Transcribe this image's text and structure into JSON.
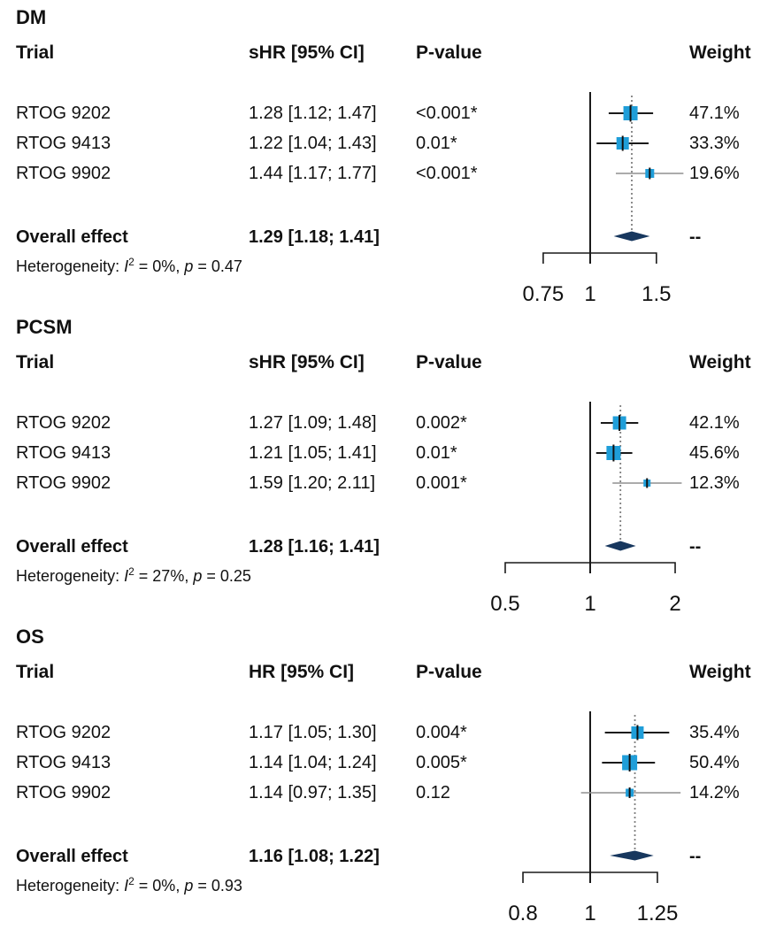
{
  "columns": {
    "trial": "Trial",
    "p_value": "P-value",
    "weight": "Weight"
  },
  "overall_label": "Overall effect",
  "overall_weight": "--",
  "het": {
    "label": "Heterogeneity: ",
    "i": "I",
    "sup": "2",
    "eq": " = ",
    "comma": ", ",
    "p": "p"
  },
  "colors": {
    "square": "#1F9ED9",
    "diamond": "#17375E",
    "line_dark": "#1a1a1a",
    "line_light": "#8f8f8f",
    "dotted": "#7f7f7f",
    "text": "#111111"
  },
  "panels": [
    {
      "title": "DM",
      "effect_header": "sHR [95% CI]",
      "rows": [
        {
          "trial": "RTOG 9202",
          "ci_text": "1.28 [1.12; 1.47]",
          "p": "<0.001*",
          "weight_text": "47.1%"
        },
        {
          "trial": "RTOG 9413",
          "ci_text": "1.22 [1.04; 1.43]",
          "p": "0.01*",
          "weight_text": "33.3%"
        },
        {
          "trial": "RTOG 9902",
          "ci_text": "1.44 [1.17; 1.77]",
          "p": "<0.001*",
          "weight_text": "19.6%"
        }
      ],
      "overall_ci_text": "1.29 [1.18; 1.41]",
      "het_i2": "0%",
      "het_p": "0.47"
    },
    {
      "title": "PCSM",
      "effect_header": "sHR [95% CI]",
      "rows": [
        {
          "trial": "RTOG 9202",
          "ci_text": "1.27 [1.09; 1.48]",
          "p": "0.002*",
          "weight_text": "42.1%"
        },
        {
          "trial": "RTOG 9413",
          "ci_text": "1.21 [1.05; 1.41]",
          "p": "0.01*",
          "weight_text": "45.6%"
        },
        {
          "trial": "RTOG 9902",
          "ci_text": "1.59 [1.20; 2.11]",
          "p": "0.001*",
          "weight_text": "12.3%"
        }
      ],
      "overall_ci_text": "1.28 [1.16; 1.41]",
      "het_i2": "27%",
      "het_p": "0.25"
    },
    {
      "title": "OS",
      "effect_header": "HR [95% CI]",
      "rows": [
        {
          "trial": "RTOG 9202",
          "ci_text": "1.17 [1.05; 1.30]",
          "p": "0.004*",
          "weight_text": "35.4%"
        },
        {
          "trial": "RTOG 9413",
          "ci_text": "1.14 [1.04; 1.24]",
          "p": "0.005*",
          "weight_text": "50.4%"
        },
        {
          "trial": "RTOG 9902",
          "ci_text": "1.14 [0.97; 1.35]",
          "p": "0.12",
          "weight_text": "14.2%"
        }
      ],
      "overall_ci_text": "1.16 [1.08; 1.22]",
      "het_i2": "0%",
      "het_p": "0.93"
    }
  ],
  "chart_data": [
    {
      "type": "forest",
      "outcome": "DM",
      "effect_measure": "sHR [95% CI]",
      "x_scale": "log",
      "reference_line": 1,
      "x_ticks": [
        0.75,
        1,
        1.5
      ],
      "x_tick_labels": [
        "0.75",
        "1",
        "1.5"
      ],
      "studies": [
        {
          "name": "RTOG 9202",
          "estimate": 1.28,
          "ci_low": 1.12,
          "ci_high": 1.47,
          "p_value": "<0.001*",
          "weight_pct": 47.1
        },
        {
          "name": "RTOG 9413",
          "estimate": 1.22,
          "ci_low": 1.04,
          "ci_high": 1.43,
          "p_value": "0.01*",
          "weight_pct": 33.3
        },
        {
          "name": "RTOG 9902",
          "estimate": 1.44,
          "ci_low": 1.17,
          "ci_high": 1.77,
          "p_value": "<0.001*",
          "weight_pct": 19.6
        }
      ],
      "overall": {
        "label": "Overall effect",
        "estimate": 1.29,
        "ci_low": 1.18,
        "ci_high": 1.41,
        "weight": "--"
      },
      "heterogeneity": {
        "i2": "0%",
        "p": "0.47"
      }
    },
    {
      "type": "forest",
      "outcome": "PCSM",
      "effect_measure": "sHR [95% CI]",
      "x_scale": "log",
      "reference_line": 1,
      "x_ticks": [
        0.5,
        1,
        2
      ],
      "x_tick_labels": [
        "0.5",
        "1",
        "2"
      ],
      "studies": [
        {
          "name": "RTOG 9202",
          "estimate": 1.27,
          "ci_low": 1.09,
          "ci_high": 1.48,
          "p_value": "0.002*",
          "weight_pct": 42.1
        },
        {
          "name": "RTOG 9413",
          "estimate": 1.21,
          "ci_low": 1.05,
          "ci_high": 1.41,
          "p_value": "0.01*",
          "weight_pct": 45.6
        },
        {
          "name": "RTOG 9902",
          "estimate": 1.59,
          "ci_low": 1.2,
          "ci_high": 2.11,
          "p_value": "0.001*",
          "weight_pct": 12.3
        }
      ],
      "overall": {
        "label": "Overall effect",
        "estimate": 1.28,
        "ci_low": 1.16,
        "ci_high": 1.41,
        "weight": "--"
      },
      "heterogeneity": {
        "i2": "27%",
        "p": "0.25"
      }
    },
    {
      "type": "forest",
      "outcome": "OS",
      "effect_measure": "HR [95% CI]",
      "x_scale": "log",
      "reference_line": 1,
      "x_ticks": [
        0.8,
        1,
        1.25
      ],
      "x_tick_labels": [
        "0.8",
        "1",
        "1.25"
      ],
      "studies": [
        {
          "name": "RTOG 9202",
          "estimate": 1.17,
          "ci_low": 1.05,
          "ci_high": 1.3,
          "p_value": "0.004*",
          "weight_pct": 35.4
        },
        {
          "name": "RTOG 9413",
          "estimate": 1.14,
          "ci_low": 1.04,
          "ci_high": 1.24,
          "p_value": "0.005*",
          "weight_pct": 50.4
        },
        {
          "name": "RTOG 9902",
          "estimate": 1.14,
          "ci_low": 0.97,
          "ci_high": 1.35,
          "p_value": "0.12",
          "weight_pct": 14.2
        }
      ],
      "overall": {
        "label": "Overall effect",
        "estimate": 1.16,
        "ci_low": 1.08,
        "ci_high": 1.22,
        "weight": "--"
      },
      "heterogeneity": {
        "i2": "0%",
        "p": "0.93"
      }
    }
  ]
}
